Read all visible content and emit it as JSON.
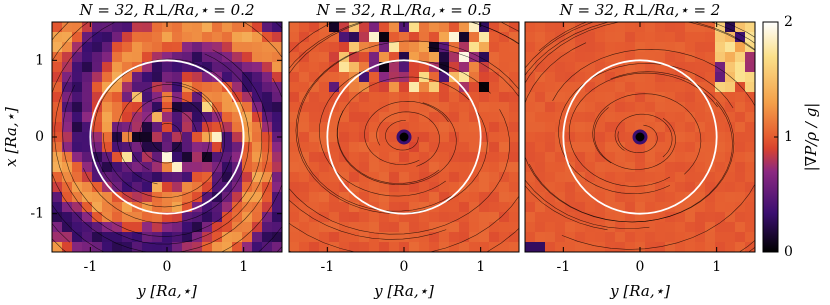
{
  "chart_data": [
    {
      "type": "heatmap",
      "title": "N = 32, R⊥/Ra,⋆ = 0.2",
      "xlabel": "y [Ra,⋆]",
      "ylabel": "x [Ra,⋆]",
      "xlim": [
        -1.5,
        1.5
      ],
      "xticks": [
        -1,
        0,
        1
      ],
      "ylim": [
        -1.5,
        1.5
      ],
      "yticks": [
        -1,
        0,
        1
      ]
    },
    {
      "type": "heatmap",
      "title": "N = 32, R⊥/Ra,⋆ = 0.5",
      "xlabel": "y [Ra,⋆]",
      "xlim": [
        -1.5,
        1.5
      ],
      "xticks": [
        -1,
        0,
        1
      ]
    },
    {
      "type": "heatmap",
      "title": "N = 32, R⊥/Ra,⋆ = 2",
      "xlabel": "y [Ra,⋆]",
      "xlim": [
        -1.5,
        1.5
      ],
      "xticks": [
        -1,
        0,
        1
      ]
    }
  ],
  "colorbar": {
    "label": "|∇P/ρ / g|",
    "lim": [
      0,
      2
    ],
    "ticks": [
      0,
      1,
      2
    ]
  }
}
